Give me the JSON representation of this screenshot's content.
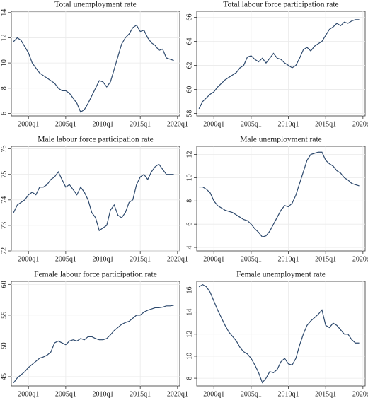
{
  "chart_data": [
    {
      "type": "line",
      "title": "Total unemployment rate",
      "color": "#2e4a6e",
      "grid": true,
      "x": [
        "1998q1",
        "1998q3",
        "1999q1",
        "1999q3",
        "2000q1",
        "2000q3",
        "2001q1",
        "2001q3",
        "2002q1",
        "2002q3",
        "2003q1",
        "2003q3",
        "2004q1",
        "2004q3",
        "2005q1",
        "2005q3",
        "2006q1",
        "2006q3",
        "2007q1",
        "2007q3",
        "2008q1",
        "2008q3",
        "2009q1",
        "2009q3",
        "2010q1",
        "2010q3",
        "2011q1",
        "2011q3",
        "2012q1",
        "2012q3",
        "2013q1",
        "2013q3",
        "2014q1",
        "2014q3",
        "2015q1",
        "2015q3",
        "2016q1",
        "2016q3",
        "2017q1",
        "2017q3",
        "2018q1",
        "2018q3",
        "2019q1",
        "2019q3"
      ],
      "values": [
        11.7,
        12.0,
        11.8,
        11.3,
        10.8,
        10.0,
        9.6,
        9.2,
        9.0,
        8.8,
        8.6,
        8.4,
        8.0,
        7.8,
        7.8,
        7.6,
        7.2,
        6.8,
        6.1,
        6.3,
        6.8,
        7.4,
        8.0,
        8.6,
        8.5,
        8.1,
        8.5,
        9.5,
        10.5,
        11.5,
        12.0,
        12.3,
        12.8,
        13.0,
        12.5,
        12.6,
        12.0,
        11.6,
        11.4,
        11.0,
        11.1,
        10.4,
        10.3,
        10.2
      ],
      "ylim": [
        5.8,
        14.1
      ],
      "yticks": [
        6,
        8,
        10,
        12,
        14
      ],
      "xticks": [
        "2000q1",
        "2005q1",
        "2010q1",
        "2015q1",
        "2020q1"
      ]
    },
    {
      "type": "line",
      "title": "Total labour force participation rate",
      "color": "#2e4a6e",
      "grid": true,
      "x": [
        "1998q1",
        "1998q3",
        "1999q1",
        "1999q3",
        "2000q1",
        "2000q3",
        "2001q1",
        "2001q3",
        "2002q1",
        "2002q3",
        "2003q1",
        "2003q3",
        "2004q1",
        "2004q3",
        "2005q1",
        "2005q3",
        "2006q1",
        "2006q3",
        "2007q1",
        "2007q3",
        "2008q1",
        "2008q3",
        "2009q1",
        "2009q3",
        "2010q1",
        "2010q3",
        "2011q1",
        "2011q3",
        "2012q1",
        "2012q3",
        "2013q1",
        "2013q3",
        "2014q1",
        "2014q3",
        "2015q1",
        "2015q3",
        "2016q1",
        "2016q3",
        "2017q1",
        "2017q3",
        "2018q1",
        "2018q3",
        "2019q1",
        "2019q3"
      ],
      "values": [
        58.4,
        59.0,
        59.3,
        59.6,
        59.8,
        60.2,
        60.5,
        60.8,
        61.0,
        61.2,
        61.4,
        61.8,
        62.0,
        62.7,
        62.8,
        62.5,
        62.3,
        62.6,
        62.2,
        62.6,
        63.0,
        62.6,
        62.5,
        62.2,
        62.0,
        61.8,
        62.0,
        62.6,
        63.3,
        63.5,
        63.2,
        63.6,
        63.8,
        64.0,
        64.5,
        65.0,
        65.2,
        65.5,
        65.3,
        65.6,
        65.5,
        65.7,
        65.8,
        65.8
      ],
      "ylim": [
        57.8,
        66.5
      ],
      "yticks": [
        58,
        60,
        62,
        64,
        66
      ],
      "xticks": [
        "2000q1",
        "2005q1",
        "2010q1",
        "2015q1",
        "2020q1"
      ]
    },
    {
      "type": "line",
      "title": "Male labour force participation rate",
      "color": "#2e4a6e",
      "grid": true,
      "x": [
        "1998q1",
        "1998q3",
        "1999q1",
        "1999q3",
        "2000q1",
        "2000q3",
        "2001q1",
        "2001q3",
        "2002q1",
        "2002q3",
        "2003q1",
        "2003q3",
        "2004q1",
        "2004q3",
        "2005q1",
        "2005q3",
        "2006q1",
        "2006q3",
        "2007q1",
        "2007q3",
        "2008q1",
        "2008q3",
        "2009q1",
        "2009q3",
        "2010q1",
        "2010q3",
        "2011q1",
        "2011q3",
        "2012q1",
        "2012q3",
        "2013q1",
        "2013q3",
        "2014q1",
        "2014q3",
        "2015q1",
        "2015q3",
        "2016q1",
        "2016q3",
        "2017q1",
        "2017q3",
        "2018q1",
        "2018q3",
        "2019q1",
        "2019q3"
      ],
      "values": [
        73.5,
        73.8,
        73.9,
        74.0,
        74.2,
        74.3,
        74.2,
        74.5,
        74.5,
        74.6,
        74.8,
        74.9,
        75.1,
        74.8,
        74.5,
        74.6,
        74.4,
        74.2,
        74.5,
        74.3,
        74.0,
        73.5,
        73.3,
        72.8,
        72.9,
        73.0,
        73.6,
        73.8,
        73.4,
        73.3,
        73.5,
        73.9,
        74.0,
        74.6,
        74.9,
        75.0,
        74.8,
        75.1,
        75.3,
        75.4,
        75.2,
        75.0,
        75.0,
        75.0
      ],
      "ylim": [
        72,
        76.1
      ],
      "yticks": [
        72,
        73,
        74,
        75,
        76
      ],
      "xticks": [
        "2000q1",
        "2005q1",
        "2010q1",
        "2015q1",
        "2020q1"
      ]
    },
    {
      "type": "line",
      "title": "Male unemployment rate",
      "color": "#2e4a6e",
      "grid": true,
      "x": [
        "1998q1",
        "1998q3",
        "1999q1",
        "1999q3",
        "2000q1",
        "2000q3",
        "2001q1",
        "2001q3",
        "2002q1",
        "2002q3",
        "2003q1",
        "2003q3",
        "2004q1",
        "2004q3",
        "2005q1",
        "2005q3",
        "2006q1",
        "2006q3",
        "2007q1",
        "2007q3",
        "2008q1",
        "2008q3",
        "2009q1",
        "2009q3",
        "2010q1",
        "2010q3",
        "2011q1",
        "2011q3",
        "2012q1",
        "2012q3",
        "2013q1",
        "2013q3",
        "2014q1",
        "2014q3",
        "2015q1",
        "2015q3",
        "2016q1",
        "2016q3",
        "2017q1",
        "2017q3",
        "2018q1",
        "2018q3",
        "2019q1",
        "2019q3"
      ],
      "values": [
        9.2,
        9.2,
        9.0,
        8.7,
        8.0,
        7.6,
        7.4,
        7.2,
        7.1,
        7.0,
        6.8,
        6.6,
        6.4,
        6.3,
        6.0,
        5.6,
        5.3,
        4.9,
        5.0,
        5.4,
        6.0,
        6.6,
        7.2,
        7.6,
        7.5,
        7.8,
        8.5,
        9.5,
        10.5,
        11.5,
        12.0,
        12.1,
        12.2,
        12.2,
        11.5,
        11.2,
        11.0,
        10.6,
        10.4,
        10.0,
        9.8,
        9.5,
        9.4,
        9.3
      ],
      "ylim": [
        3.7,
        12.7
      ],
      "yticks": [
        4,
        6,
        8,
        10,
        12
      ],
      "xticks": [
        "2000q1",
        "2005q1",
        "2010q1",
        "2015q1",
        "2020q1"
      ]
    },
    {
      "type": "line",
      "title": "Female labour force participation rate",
      "color": "#2e4a6e",
      "grid": true,
      "x": [
        "1998q1",
        "1998q3",
        "1999q1",
        "1999q3",
        "2000q1",
        "2000q3",
        "2001q1",
        "2001q3",
        "2002q1",
        "2002q3",
        "2003q1",
        "2003q3",
        "2004q1",
        "2004q3",
        "2005q1",
        "2005q3",
        "2006q1",
        "2006q3",
        "2007q1",
        "2007q3",
        "2008q1",
        "2008q3",
        "2009q1",
        "2009q3",
        "2010q1",
        "2010q3",
        "2011q1",
        "2011q3",
        "2012q1",
        "2012q3",
        "2013q1",
        "2013q3",
        "2014q1",
        "2014q3",
        "2015q1",
        "2015q3",
        "2016q1",
        "2016q3",
        "2017q1",
        "2017q3",
        "2018q1",
        "2018q3",
        "2019q1",
        "2019q3"
      ],
      "values": [
        44.0,
        44.8,
        45.3,
        45.8,
        46.5,
        47.0,
        47.5,
        48.0,
        48.2,
        48.5,
        49.0,
        50.5,
        50.8,
        50.5,
        50.2,
        50.8,
        51.0,
        50.8,
        51.2,
        51.0,
        51.5,
        51.5,
        51.2,
        51.0,
        51.0,
        51.2,
        51.8,
        52.5,
        53.0,
        53.5,
        53.8,
        54.0,
        54.5,
        55.0,
        55.0,
        55.5,
        55.8,
        56.0,
        56.2,
        56.2,
        56.3,
        56.5,
        56.5,
        56.6
      ],
      "ylim": [
        43.5,
        60.5
      ],
      "yticks": [
        45,
        50,
        55,
        60
      ],
      "xticks": [
        "2000q1",
        "2005q1",
        "2010q1",
        "2015q1",
        "2020q1"
      ]
    },
    {
      "type": "line",
      "title": "Female unemployment rate",
      "color": "#2e4a6e",
      "grid": true,
      "x": [
        "1998q1",
        "1998q3",
        "1999q1",
        "1999q3",
        "2000q1",
        "2000q3",
        "2001q1",
        "2001q3",
        "2002q1",
        "2002q3",
        "2003q1",
        "2003q3",
        "2004q1",
        "2004q3",
        "2005q1",
        "2005q3",
        "2006q1",
        "2006q3",
        "2007q1",
        "2007q3",
        "2008q1",
        "2008q3",
        "2009q1",
        "2009q3",
        "2010q1",
        "2010q3",
        "2011q1",
        "2011q3",
        "2012q1",
        "2012q3",
        "2013q1",
        "2013q3",
        "2014q1",
        "2014q3",
        "2015q1",
        "2015q3",
        "2016q1",
        "2016q3",
        "2017q1",
        "2017q3",
        "2018q1",
        "2018q3",
        "2019q1",
        "2019q3"
      ],
      "values": [
        16.3,
        16.5,
        16.3,
        15.8,
        15.0,
        14.2,
        13.5,
        12.8,
        12.2,
        11.8,
        11.4,
        10.8,
        10.4,
        10.2,
        9.8,
        9.2,
        8.5,
        7.6,
        8.0,
        8.6,
        8.5,
        8.8,
        9.5,
        9.8,
        9.3,
        9.2,
        9.8,
        11.0,
        12.0,
        12.8,
        13.2,
        13.5,
        13.8,
        14.2,
        12.8,
        12.6,
        13.0,
        12.8,
        12.4,
        12.0,
        12.0,
        11.5,
        11.2,
        11.2
      ],
      "ylim": [
        7.3,
        16.8
      ],
      "yticks": [
        8,
        10,
        12,
        14,
        16
      ],
      "xticks": [
        "2000q1",
        "2005q1",
        "2010q1",
        "2015q1",
        "2020q1"
      ]
    }
  ]
}
